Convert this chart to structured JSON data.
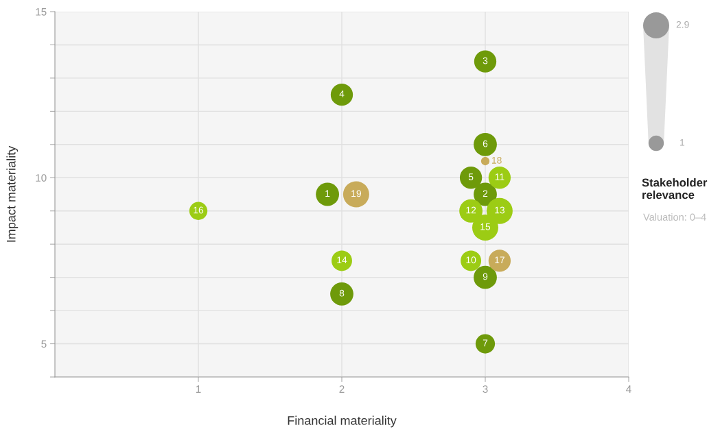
{
  "chart_data": {
    "type": "bubble",
    "xlabel": "Financial materiality",
    "ylabel": "Impact materiality",
    "xlim": [
      0,
      4
    ],
    "xticks": [
      1,
      2,
      3,
      4
    ],
    "ylim": [
      4,
      15
    ],
    "yticks": [
      {
        "value": 4,
        "label": null
      },
      5,
      {
        "value": 6,
        "label": null
      },
      {
        "value": 7,
        "label": null
      },
      {
        "value": 8,
        "label": null
      },
      {
        "value": 9,
        "label": null
      },
      10,
      {
        "value": 11,
        "label": null
      },
      {
        "value": 12,
        "label": null
      },
      {
        "value": 13,
        "label": null
      },
      {
        "value": 14,
        "label": null
      },
      15
    ],
    "grid": true,
    "legend_title": "Stakeholder relevance",
    "x": [
      1.9,
      3,
      3,
      2,
      2.9,
      3,
      3,
      2,
      3,
      2.9,
      3.1,
      2.9,
      3.1,
      2,
      3,
      1,
      3.1,
      3,
      2.1
    ],
    "values": [
      9.5,
      9.5,
      13.5,
      12.5,
      10,
      11,
      5,
      6.5,
      7,
      7.5,
      10,
      9,
      9,
      7.5,
      8.5,
      9,
      7.5,
      10.5,
      9.5
    ],
    "sizes": [
      2.3,
      2.3,
      2.1,
      2.1,
      2.1,
      2.3,
      1.6,
      2.3,
      2.3,
      1.8,
      2.1,
      2.3,
      2.9,
      1.8,
      2.9,
      1.4,
      2.1,
      0.3,
      2.9
    ],
    "size_legend": [
      1,
      2.9
    ],
    "colors": [
      "#6e9a0a",
      "#6e9a0a",
      "#6e9a0a",
      "#6e9a0a",
      "#6e9a0a",
      "#6e9a0a",
      "#6e9a0a",
      "#6e9a0a",
      "#6e9a0a",
      "#9ccc14",
      "#9ccc14",
      "#9ccc14",
      "#9ccc14",
      "#9ccc14",
      "#9ccc14",
      "#9ccc14",
      "#c8ab5a",
      "#c8ab5a",
      "#c8ab5a"
    ],
    "annotations": [
      {
        "text": "1",
        "x": 1.9,
        "y": 9.5
      },
      {
        "text": "2",
        "x": 3,
        "y": 9.5
      },
      {
        "text": "3",
        "x": 3,
        "y": 13.5
      },
      {
        "text": "4",
        "x": 2,
        "y": 12.5
      },
      {
        "text": "5",
        "x": 2.9,
        "y": 10
      },
      {
        "text": "6",
        "x": 3,
        "y": 11
      },
      {
        "text": "7",
        "x": 3,
        "y": 5
      },
      {
        "text": "8",
        "x": 2,
        "y": 6.5
      },
      {
        "text": "9",
        "x": 3,
        "y": 7
      },
      {
        "text": "10",
        "x": 2.9,
        "y": 7.5
      },
      {
        "text": "11",
        "x": 3.1,
        "y": 10
      },
      {
        "text": "12",
        "x": 2.9,
        "y": 9
      },
      {
        "text": "13",
        "x": 3.1,
        "y": 9
      },
      {
        "text": "14",
        "x": 2,
        "y": 7.5
      },
      {
        "text": "15",
        "x": 3,
        "y": 8.5
      },
      {
        "text": "16",
        "x": 1,
        "y": 9
      },
      {
        "text": "17",
        "x": 3.1,
        "y": 7.5
      },
      {
        "text": "18",
        "x": 3,
        "y": 10.5
      },
      {
        "text": "19",
        "x": 2.1,
        "y": 9.5
      },
      "Valuation: 0–4"
    ]
  }
}
